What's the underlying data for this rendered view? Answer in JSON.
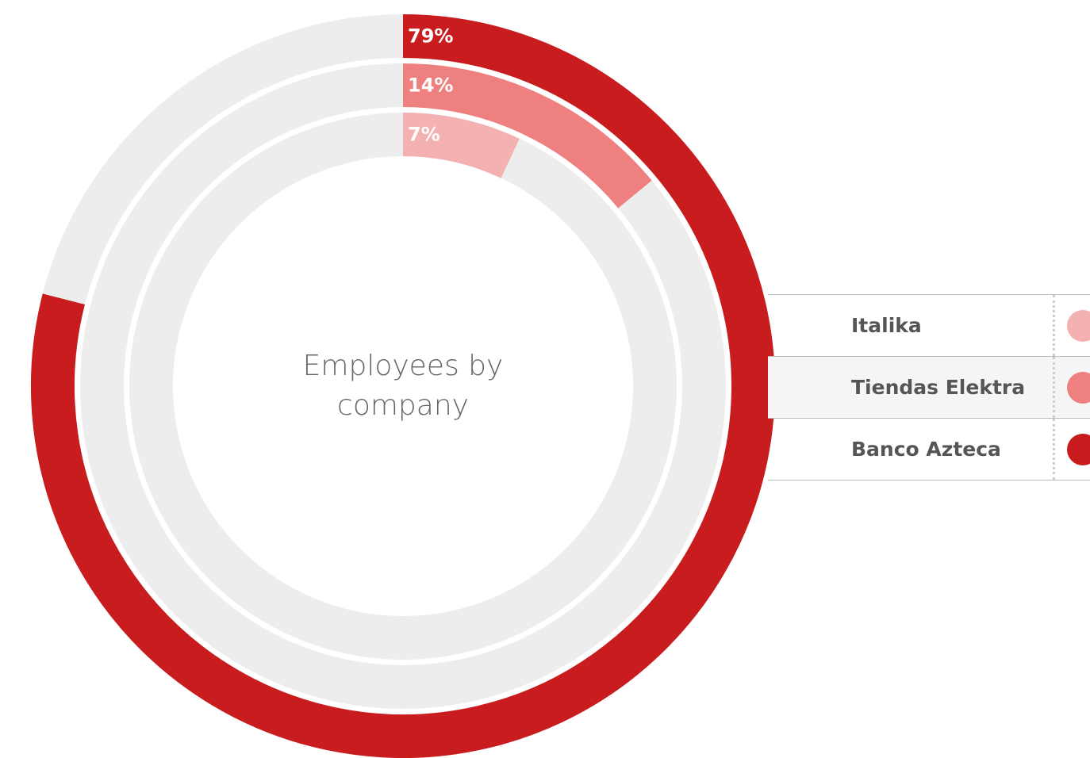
{
  "chart_data": {
    "type": "radialBar",
    "title": "Employees by company",
    "categories": [
      "Italika",
      "Tiendas Elektra",
      "Banco Azteca"
    ],
    "values": [
      7,
      14,
      79
    ],
    "value_labels": [
      "7%",
      "14%",
      "79%"
    ],
    "colors": [
      "#f4b1b1",
      "#ef8080",
      "#c81c1e"
    ],
    "legend": "right"
  }
}
